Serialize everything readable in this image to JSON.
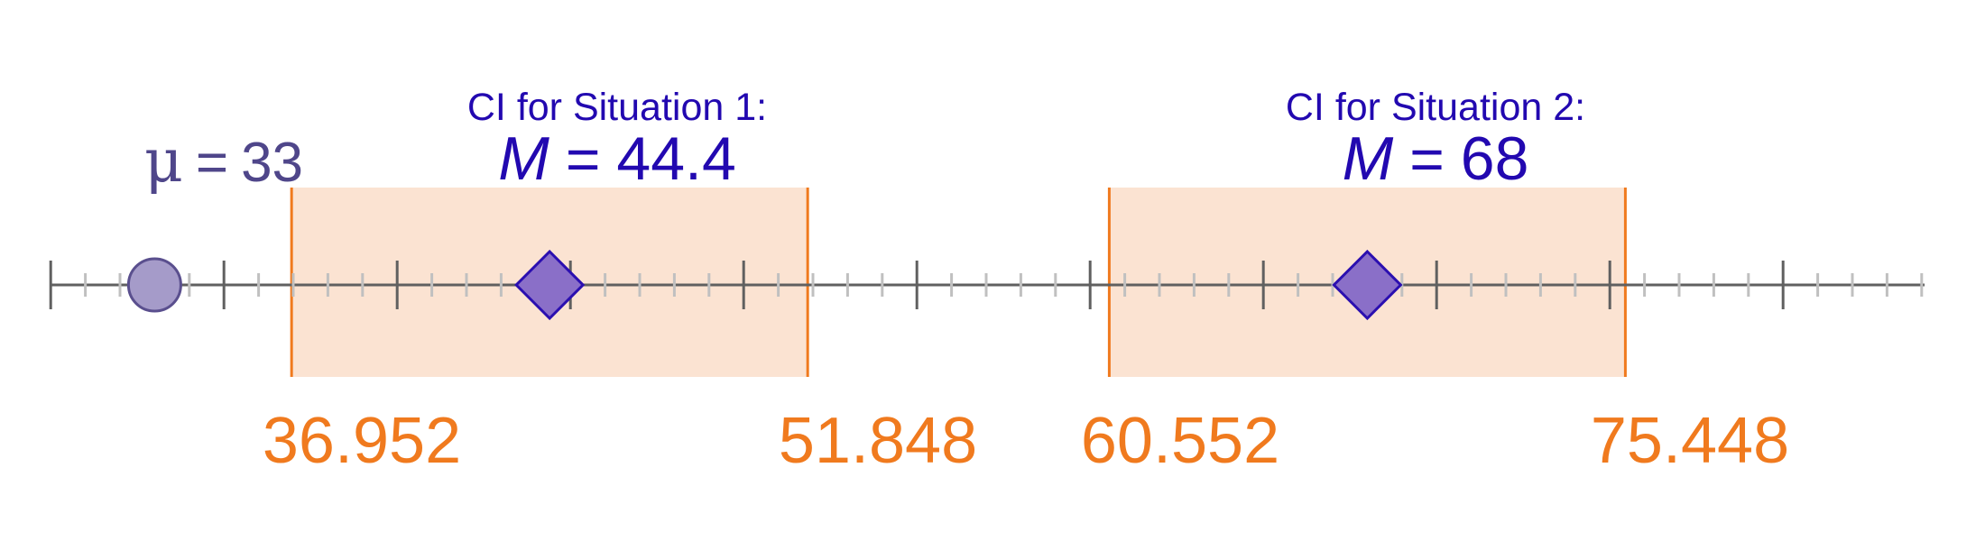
{
  "colors": {
    "axis": "#606060",
    "minor_tick": "#c0c0c0",
    "major_tick": "#606060",
    "ci_fill": "#fbe3d2",
    "ci_edge": "#f07a1e",
    "bound_text": "#f07a1e",
    "mean_fill": "#8a6fc8",
    "mean_stroke": "#2b0fb0",
    "mean_text": "#2208b0",
    "mu_fill": "#a59bc9",
    "mu_stroke": "#5a4f8e",
    "mu_text": "#4f468a"
  },
  "chart_data": {
    "type": "number-line",
    "x_range": [
      32,
      86
    ],
    "major_tick_step": 5,
    "minor_tick_step": 1,
    "mu": {
      "value": 33,
      "symbol": "μ",
      "equals": "=",
      "value_text": "33"
    },
    "intervals": [
      {
        "caption": "CI for Situation 1:",
        "mean_symbol": "M",
        "equals": "=",
        "mean_text": "44.4",
        "mean": 44.4,
        "lower": 36.952,
        "upper": 51.848,
        "lower_text": "36.952",
        "upper_text": "51.848"
      },
      {
        "caption": "CI for Situation 2:",
        "mean_symbol": "M",
        "equals": "=",
        "mean_text": "68",
        "mean": 68,
        "lower": 60.552,
        "upper": 75.448,
        "lower_text": "60.552",
        "upper_text": "75.448"
      }
    ]
  }
}
